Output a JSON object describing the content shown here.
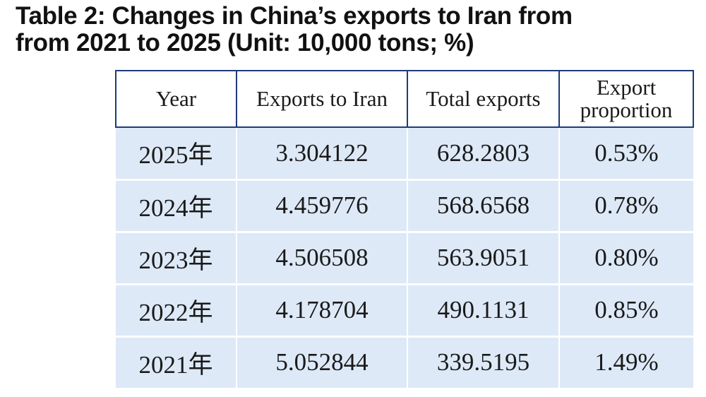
{
  "title_lines": [
    "Table 2: Changes in China’s exports to Iran from",
    "from 2021 to 2025 (Unit: 10,000 tons; %)"
  ],
  "chart_data": {
    "type": "table",
    "title": "Table 2: Changes in China’s exports to Iran from from 2021 to 2025 (Unit: 10,000 tons; %)",
    "columns": [
      "Year",
      "Exports to Iran",
      "Total exports",
      "Export proportion"
    ],
    "rows": [
      [
        "2025年",
        "3.304122",
        "628.2803",
        "0.53%"
      ],
      [
        "2024年",
        "4.459776",
        "568.6568",
        "0.78%"
      ],
      [
        "2023年",
        "4.506508",
        "563.9051",
        "0.80%"
      ],
      [
        "2022年",
        "4.178704",
        "490.1131",
        "0.85%"
      ],
      [
        "2021年",
        "5.052844",
        "339.5195",
        "1.49%"
      ]
    ]
  }
}
